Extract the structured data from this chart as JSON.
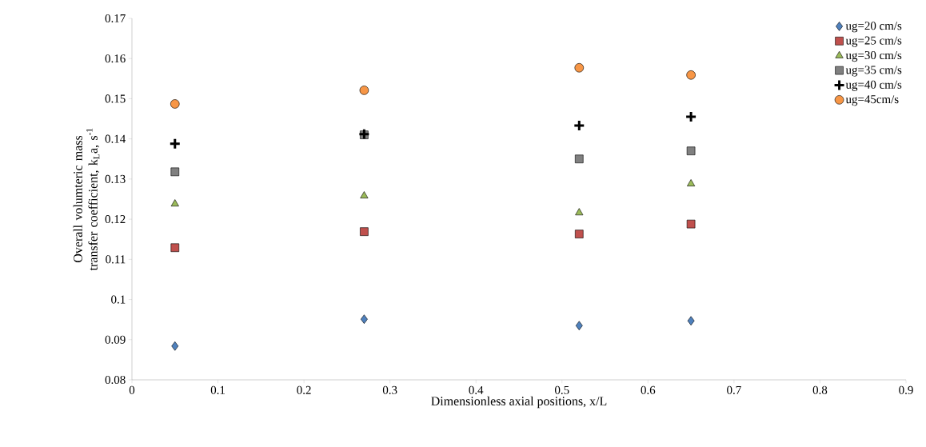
{
  "chart_data": {
    "type": "scatter",
    "xlabel": "Dimensionless axial positions, x/L",
    "ylabel": "Overall volumteric mass transfer coefficient, k$_{L}$a, s$^{-1}$",
    "x": [
      0.05,
      0.27,
      0.52,
      0.65
    ],
    "series": [
      {
        "name": "ug=20 cm/s",
        "color": "#4f81bd",
        "marker": "diamond",
        "values": [
          0.0884,
          0.0951,
          0.0935,
          0.0947
        ]
      },
      {
        "name": "ug=25 cm/s",
        "color": "#c0504d",
        "marker": "square",
        "values": [
          0.1129,
          0.1169,
          0.1163,
          0.1188
        ]
      },
      {
        "name": "ug=30 cm/s",
        "color": "#9bbb59",
        "marker": "triangle",
        "values": [
          0.1238,
          0.1258,
          0.1216,
          0.1288
        ]
      },
      {
        "name": "ug=35 cm/s",
        "color": "#808080",
        "marker": "square",
        "values": [
          0.1318,
          0.141,
          0.135,
          0.137
        ]
      },
      {
        "name": "ug=40 cm/s",
        "color": "#000000",
        "marker": "cross",
        "values": [
          0.1388,
          0.1412,
          0.1433,
          0.1455
        ]
      },
      {
        "name": "ug=45cm/s",
        "color": "#f79646",
        "marker": "circle",
        "values": [
          0.1487,
          0.1521,
          0.1577,
          0.1559
        ]
      }
    ],
    "xlim": [
      0,
      0.9
    ],
    "ylim": [
      0.08,
      0.17
    ],
    "xticks": [
      0,
      0.1,
      0.2,
      0.3,
      0.4,
      0.5,
      0.6,
      0.7,
      0.8,
      0.9
    ],
    "yticks": [
      0.08,
      0.09,
      0.1,
      0.11,
      0.12,
      0.13,
      0.14,
      0.15,
      0.16,
      0.17
    ],
    "grid": false,
    "legend": "top right"
  }
}
